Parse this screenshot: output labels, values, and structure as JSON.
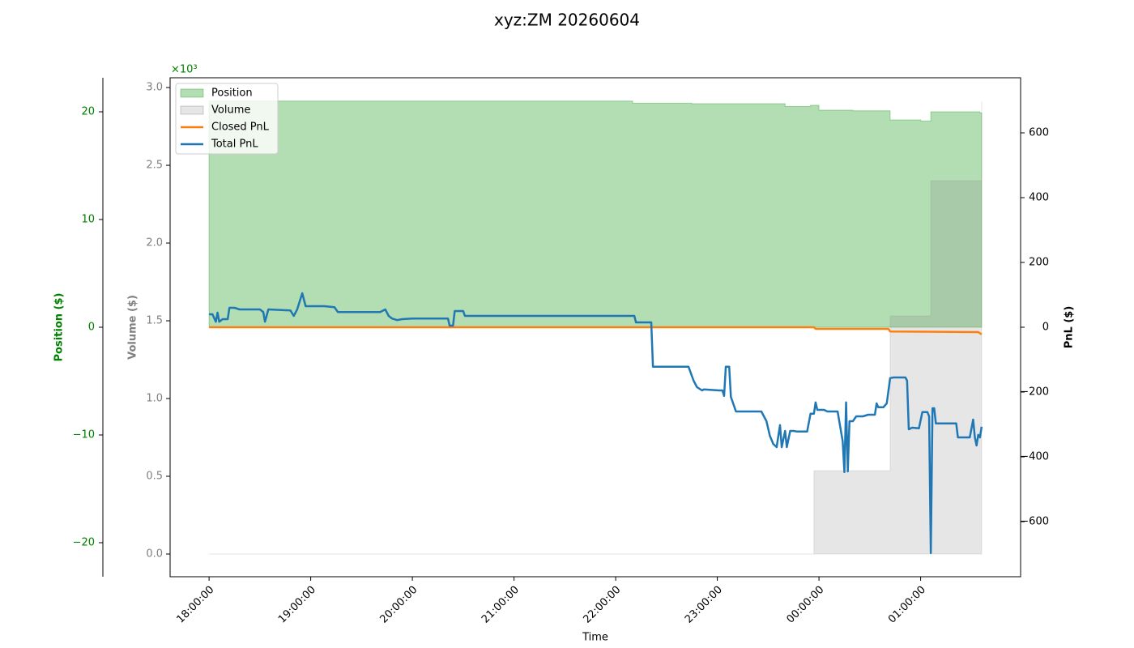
{
  "chart_data": {
    "type": "line",
    "title": "xyz:ZM 20260604",
    "xlabel": "Time",
    "xlim": [
      -23,
      479
    ],
    "xticks": [
      {
        "value": 0,
        "label": "18:00:00"
      },
      {
        "value": 60,
        "label": "19:00:00"
      },
      {
        "value": 120,
        "label": "20:00:00"
      },
      {
        "value": 180,
        "label": "21:00:00"
      },
      {
        "value": 240,
        "label": "22:00:00"
      },
      {
        "value": 300,
        "label": "23:00:00"
      },
      {
        "value": 360,
        "label": "00:00:00"
      },
      {
        "value": 420,
        "label": "01:00:00"
      }
    ],
    "ylabel": "Volume ($)",
    "y_offset_label": "×10³",
    "ylim": [
      -146,
      3063
    ],
    "yticks": [
      {
        "value": 0,
        "label": "0.0"
      },
      {
        "value": 500,
        "label": "0.5"
      },
      {
        "value": 1000,
        "label": "1.0"
      },
      {
        "value": 1500,
        "label": "1.5"
      },
      {
        "value": 2000,
        "label": "2.0"
      },
      {
        "value": 2500,
        "label": "2.5"
      },
      {
        "value": 3000,
        "label": "3.0"
      }
    ],
    "y_color": "#808080",
    "y2label": "PnL ($)",
    "y2lim": [
      -770,
      770
    ],
    "y2ticks": [
      {
        "value": -600,
        "label": "−600"
      },
      {
        "value": -400,
        "label": "−400"
      },
      {
        "value": -200,
        "label": "−200"
      },
      0,
      200,
      400,
      600
    ],
    "y2_color": "#000000",
    "y3label": "Position ($)",
    "y3lim": [
      -23.16,
      23.16
    ],
    "y3ticks": [
      {
        "value": -20,
        "label": "−20"
      },
      {
        "value": -10,
        "label": "−10"
      },
      0,
      10,
      20
    ],
    "y3_color": "#008000",
    "legend": "upper left",
    "series": [
      {
        "name": "Position",
        "kind": "step-area",
        "axis": "y3",
        "color": "#2ca02c",
        "x": [
          0,
          250,
          285,
          300,
          340,
          355,
          360,
          380,
          402,
          420,
          426,
          455,
          456
        ],
        "values": [
          21.0,
          20.8,
          20.75,
          20.75,
          20.5,
          20.6,
          20.15,
          20.1,
          19.25,
          19.15,
          20.0,
          19.9,
          19.6
        ]
      },
      {
        "name": "Volume",
        "kind": "step-area",
        "axis": "y",
        "color": "#808080",
        "x": [
          0,
          357,
          402,
          426,
          456
        ],
        "values": [
          0,
          536,
          1531,
          2401,
          2911
        ]
      },
      {
        "name": "Closed PnL",
        "kind": "line",
        "axis": "y2",
        "color": "#ff7f0e",
        "x": [
          0,
          357,
          358,
          401,
          402,
          454,
          456
        ],
        "values": [
          0,
          0,
          -5,
          -5,
          -13,
          -15,
          -22
        ]
      },
      {
        "name": "Total PnL",
        "kind": "line",
        "axis": "y2",
        "color": "#1f77b4",
        "x": [
          0,
          2,
          4,
          5,
          6,
          8,
          11,
          12,
          15,
          18,
          30,
          32,
          33,
          35,
          48,
          50,
          52,
          55,
          57,
          68,
          74,
          76,
          101,
          104,
          106,
          108,
          111,
          114,
          120,
          141,
          142,
          144,
          145,
          150,
          151,
          251,
          252,
          261,
          262,
          283,
          286,
          288,
          291,
          292,
          301,
          303,
          304,
          305,
          307,
          308,
          311,
          326,
          329,
          331,
          333,
          335,
          337,
          338,
          340,
          341,
          343,
          345,
          347,
          353,
          355,
          357,
          358,
          359,
          363,
          365,
          371,
          374,
          375,
          376,
          377,
          378,
          380,
          382,
          386,
          389,
          393,
          394,
          395,
          398,
          400,
          402,
          404,
          411,
          412,
          413,
          415,
          419,
          421,
          424,
          425,
          426,
          427,
          428,
          429,
          435,
          441,
          442,
          449,
          451,
          452,
          453,
          454,
          455,
          456
        ],
        "values": [
          40,
          40,
          17,
          45,
          17,
          25,
          25,
          60,
          60,
          55,
          55,
          47,
          17,
          55,
          52,
          35,
          55,
          105,
          65,
          65,
          62,
          47,
          47,
          55,
          35,
          27,
          22,
          25,
          27,
          27,
          5,
          5,
          50,
          50,
          35,
          35,
          15,
          15,
          -122,
          -122,
          -165,
          -185,
          -195,
          -192,
          -195,
          -195,
          -212,
          -122,
          -122,
          -215,
          -260,
          -260,
          -290,
          -335,
          -360,
          -370,
          -302,
          -370,
          -320,
          -370,
          -320,
          -320,
          -322,
          -322,
          -267,
          -267,
          -232,
          -255,
          -255,
          -260,
          -260,
          -352,
          -447,
          -232,
          -445,
          -290,
          -290,
          -275,
          -275,
          -270,
          -270,
          -235,
          -247,
          -247,
          -235,
          -157,
          -155,
          -155,
          -165,
          -315,
          -310,
          -312,
          -262,
          -262,
          -275,
          -697,
          -250,
          -250,
          -297,
          -297,
          -297,
          -340,
          -340,
          -285,
          -340,
          -365,
          -332,
          -340,
          -307
        ]
      }
    ]
  }
}
